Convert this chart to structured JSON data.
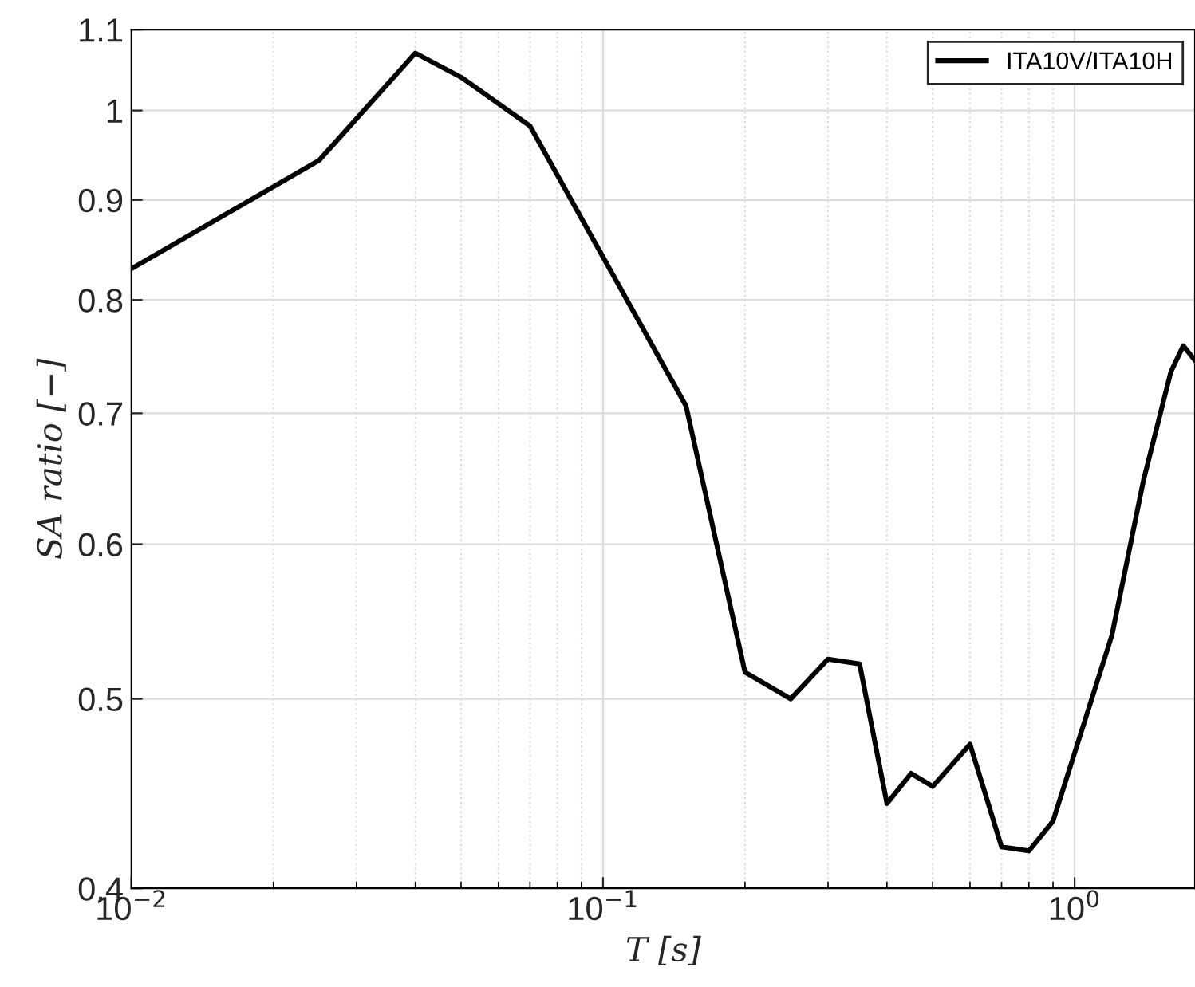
{
  "chart_data": {
    "type": "line",
    "xlabel": "T [s]",
    "ylabel": "SA ratio [−]",
    "log": "xy",
    "grid": true,
    "legend": "top right",
    "line_style": "solid",
    "marker": "none",
    "xlim": [
      0.01,
      1.8
    ],
    "xticks": [
      {
        "value": 0.01,
        "label": "10$^{−2}$"
      },
      {
        "value": 0.1,
        "label": "10$^{−1}$"
      },
      {
        "value": 1,
        "label": "10$^{0}$"
      }
    ],
    "ylim": [
      0.4,
      1.1
    ],
    "yticks": [
      0.4,
      0.5,
      0.6,
      0.7,
      0.8,
      0.9,
      1,
      1.1
    ],
    "series": [
      {
        "name": "ITA10V/ITA10H",
        "color": "#000000",
        "x": [
          0.01,
          0.025,
          0.04,
          0.05,
          0.07,
          0.15,
          0.2,
          0.25,
          0.3,
          0.35,
          0.4,
          0.45,
          0.5,
          0.6,
          0.7,
          0.8,
          0.9,
          1.2,
          1.4,
          1.6,
          1.7,
          1.8
        ],
        "values": [
          0.83,
          0.943,
          1.07,
          1.04,
          0.982,
          0.706,
          0.516,
          0.5,
          0.524,
          0.521,
          0.442,
          0.458,
          0.451,
          0.474,
          0.42,
          0.418,
          0.433,
          0.539,
          0.647,
          0.735,
          0.758,
          0.745
        ]
      }
    ]
  }
}
